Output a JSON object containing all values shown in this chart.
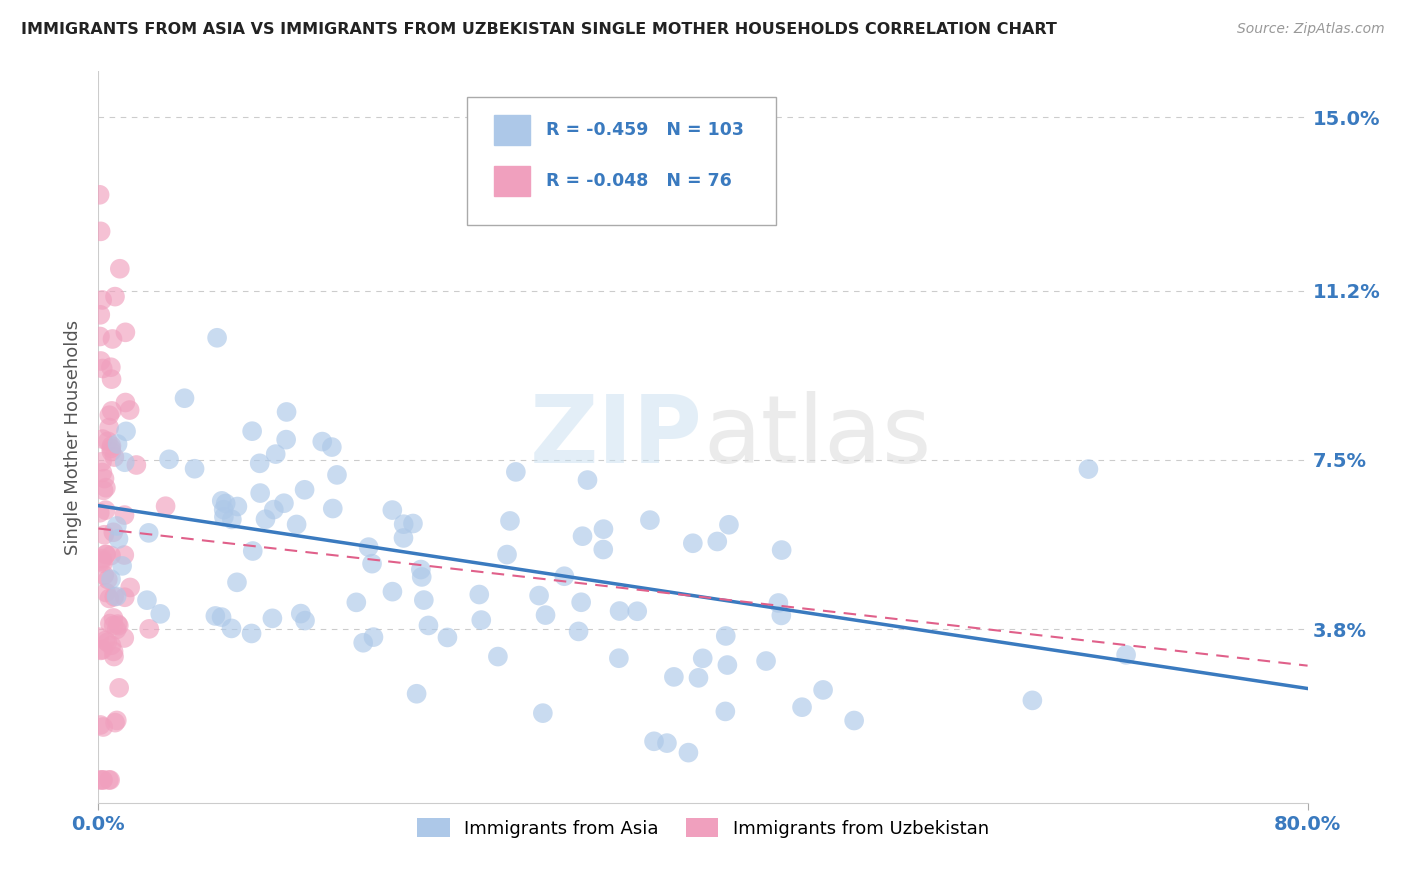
{
  "title": "IMMIGRANTS FROM ASIA VS IMMIGRANTS FROM UZBEKISTAN SINGLE MOTHER HOUSEHOLDS CORRELATION CHART",
  "source": "Source: ZipAtlas.com",
  "ylabel": "Single Mother Households",
  "watermark_zip": "ZIP",
  "watermark_atlas": "atlas",
  "legend_asia": "Immigrants from Asia",
  "legend_uzb": "Immigrants from Uzbekistan",
  "r_asia": -0.459,
  "n_asia": 103,
  "r_uzb": -0.048,
  "n_uzb": 76,
  "xlim": [
    0.0,
    0.8
  ],
  "ylim": [
    0.0,
    0.16
  ],
  "yticks": [
    0.038,
    0.075,
    0.112,
    0.15
  ],
  "ytick_labels": [
    "3.8%",
    "7.5%",
    "11.2%",
    "15.0%"
  ],
  "xtick_labels": [
    "0.0%",
    "80.0%"
  ],
  "color_asia": "#adc8e8",
  "color_uzb": "#f0a0be",
  "line_color_asia": "#3a7abf",
  "line_color_uzb": "#e0608a",
  "background": "#ffffff",
  "grid_color": "#cccccc"
}
